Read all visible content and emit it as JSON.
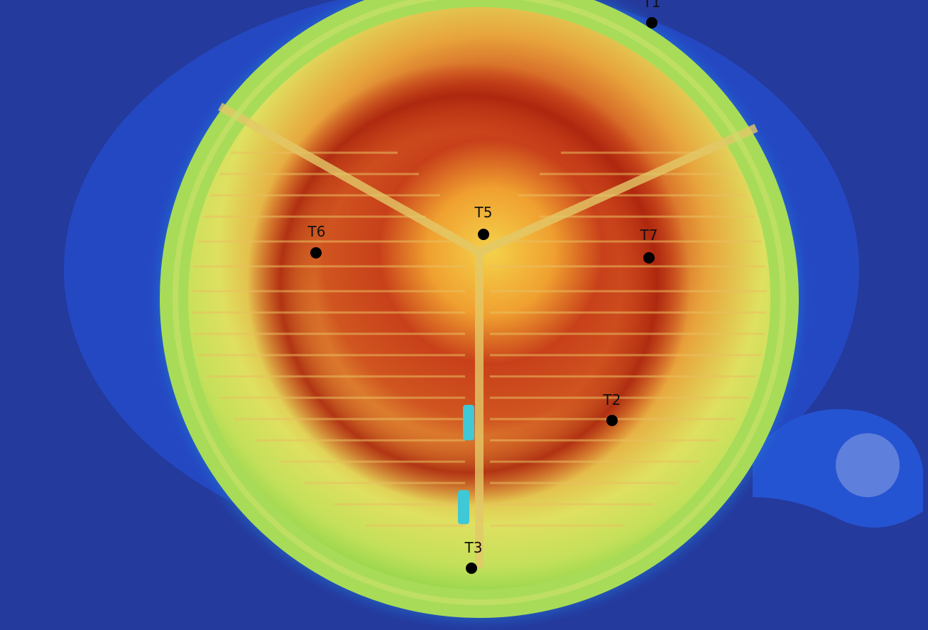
{
  "image": {
    "kind": "infrared-thermal-photo",
    "subject": "circular-heating-plate-with-serpentine-channels",
    "colors": {
      "background": "#243a9c",
      "cold_blue": "#1f45c8",
      "cyan": "#22b5e0",
      "green": "#9ad84a",
      "yellow": "#f0e055",
      "orange": "#f07a2a",
      "hot_red": "#b8240e"
    }
  },
  "probes": [
    {
      "id": "t1",
      "label": "T1"
    },
    {
      "id": "t2",
      "label": "T2"
    },
    {
      "id": "t3",
      "label": "T3"
    },
    {
      "id": "t5",
      "label": "T5"
    },
    {
      "id": "t6",
      "label": "T6"
    },
    {
      "id": "t7",
      "label": "T7"
    }
  ]
}
